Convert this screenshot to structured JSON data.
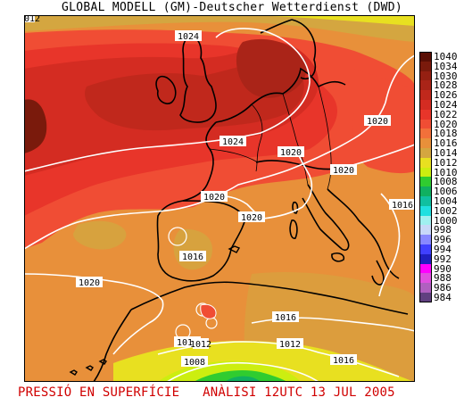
{
  "header": {
    "title": "GLOBAL MODELL (GM)-Deutscher Wetterdienst (DWD)"
  },
  "footer": {
    "left": "PRESSIÓ EN SUPERFÍCIE",
    "right": "ANÀLISI 12UTC 13 JUL 2005"
  },
  "map": {
    "corner_label": "012",
    "isobar_labels": [
      "1024",
      "1024",
      "1020",
      "1020",
      "1020",
      "1020",
      "1020",
      "1020",
      "1016",
      "1016",
      "1016",
      "1016",
      "1016",
      "1016",
      "1012",
      "1012",
      "1008"
    ]
  },
  "legend": {
    "entries": [
      {
        "label": "1040",
        "color": "#5a0f05"
      },
      {
        "label": "1034",
        "color": "#7a1a0c"
      },
      {
        "label": "1030",
        "color": "#952012"
      },
      {
        "label": "1028",
        "color": "#aa2418"
      },
      {
        "label": "1026",
        "color": "#c0281c"
      },
      {
        "label": "1024",
        "color": "#d42c22"
      },
      {
        "label": "1022",
        "color": "#e8352a"
      },
      {
        "label": "1020",
        "color": "#f04d34"
      },
      {
        "label": "1018",
        "color": "#f2703a"
      },
      {
        "label": "1016",
        "color": "#e8903a"
      },
      {
        "label": "1014",
        "color": "#d4a640"
      },
      {
        "label": "1012",
        "color": "#e8e020"
      },
      {
        "label": "1010",
        "color": "#ccee10"
      },
      {
        "label": "1008",
        "color": "#30cc30"
      },
      {
        "label": "1006",
        "color": "#10b060"
      },
      {
        "label": "1004",
        "color": "#10c0a0"
      },
      {
        "label": "1002",
        "color": "#20e0e0"
      },
      {
        "label": "1000",
        "color": "#a0f0f0"
      },
      {
        "label": "998",
        "color": "#c8d8f8"
      },
      {
        "label": "996",
        "color": "#8888ff"
      },
      {
        "label": "994",
        "color": "#4040ff"
      },
      {
        "label": "992",
        "color": "#2020c0"
      },
      {
        "label": "990",
        "color": "#ff00ff"
      },
      {
        "label": "988",
        "color": "#e050e0"
      },
      {
        "label": "986",
        "color": "#b060c0"
      },
      {
        "label": "984",
        "color": "#604080"
      }
    ]
  }
}
